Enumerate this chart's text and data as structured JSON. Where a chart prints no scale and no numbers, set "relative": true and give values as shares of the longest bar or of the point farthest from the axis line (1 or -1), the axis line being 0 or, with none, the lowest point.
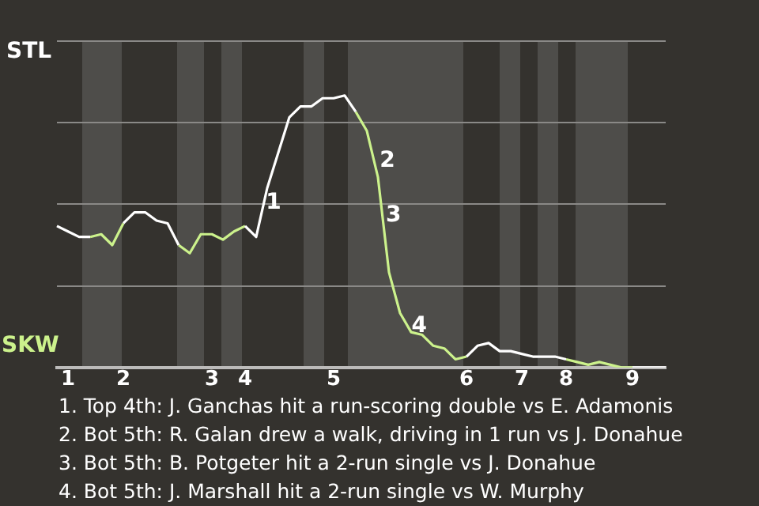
{
  "chart_data": {
    "type": "line",
    "relative": true,
    "categories": [
      null,
      "1",
      null,
      null,
      null,
      null,
      "2",
      null,
      null,
      null,
      null,
      null,
      null,
      null,
      "3",
      null,
      null,
      "4",
      null,
      null,
      null,
      null,
      null,
      null,
      null,
      "5",
      null,
      null,
      null,
      null,
      null,
      null,
      null,
      null,
      null,
      null,
      null,
      "6",
      null,
      null,
      null,
      null,
      "7",
      null,
      null,
      null,
      "8",
      null,
      null,
      null,
      null,
      null,
      "9",
      null,
      null,
      null
    ],
    "series": [
      {
        "color": "#ffffff",
        "values": [
          0.52,
          0.5,
          0.48,
          0.48,
          null,
          null,
          0.53,
          0.57,
          0.57,
          0.54,
          0.53,
          0.45,
          null,
          null,
          null,
          null,
          null,
          0.52,
          0.48,
          0.66,
          0.79,
          0.92,
          0.96,
          0.96,
          0.99,
          0.99,
          1,
          0.94,
          null,
          null,
          null,
          null,
          null,
          null,
          null,
          null,
          null,
          0.04,
          0.08,
          0.09,
          0.06,
          0.06,
          0.05,
          0.04,
          0.04,
          0.04,
          0.03,
          null,
          null,
          null,
          null,
          null,
          0,
          0,
          0,
          0
        ]
      },
      {
        "color": "#ccf28c",
        "values": [
          null,
          null,
          null,
          0.48,
          0.49,
          0.45,
          0.53,
          null,
          null,
          null,
          null,
          0.45,
          0.42,
          0.49,
          0.49,
          0.47,
          0.5,
          0.52,
          null,
          null,
          null,
          null,
          null,
          null,
          null,
          null,
          null,
          0.94,
          0.87,
          0.7,
          0.35,
          0.2,
          0.13,
          0.12,
          0.08,
          0.07,
          0.03,
          0.04,
          null,
          null,
          null,
          null,
          null,
          null,
          null,
          null,
          0.03,
          0.02,
          0.01,
          0.02,
          0.01,
          0,
          0,
          null,
          null,
          null
        ]
      }
    ],
    "grid": "y",
    "marker": "none",
    "line_style": "solid",
    "annotations": [
      "STL",
      "SKW",
      "1",
      "2",
      "3",
      "4",
      "1. Top 4th: J. Ganchas hit a run-scoring double vs E. Adamonis",
      "2. Bot 5th: R. Galan drew a walk, driving in 1 run vs J. Donahue",
      "3. Bot 5th: B. Potgeter hit a 2-run single vs J. Donahue",
      "4. Bot 5th: J. Marshall hit a 2-run single vs W. Murphy"
    ]
  }
}
